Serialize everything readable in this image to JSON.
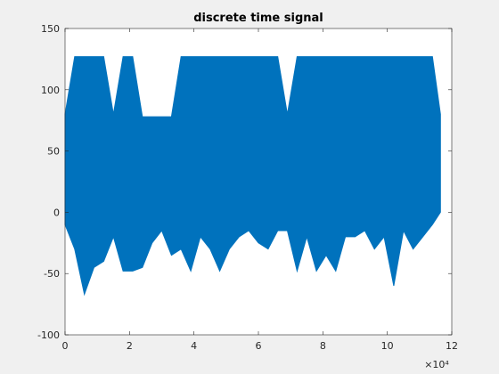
{
  "figure": {
    "background": "#f0f0f0",
    "axes_background": "#ffffff",
    "signal_color": "#0072bd",
    "exponent_label": "×10⁴"
  },
  "chart_data": {
    "type": "line",
    "title": "discrete time signal",
    "xlabel": "",
    "ylabel": "",
    "xlim": [
      0,
      120000
    ],
    "ylim": [
      -100,
      150
    ],
    "x_ticks": [
      0,
      20000,
      40000,
      60000,
      80000,
      100000,
      120000
    ],
    "x_tick_labels": [
      "0",
      "2",
      "4",
      "6",
      "8",
      "10",
      "12"
    ],
    "y_ticks": [
      -100,
      -50,
      0,
      50,
      100,
      150
    ],
    "y_tick_labels": [
      "-100",
      "-50",
      "0",
      "50",
      "100",
      "150"
    ],
    "grid": false,
    "legend": "none",
    "series": [
      {
        "x": [
          0,
          3000,
          6000,
          9000,
          12000,
          15000,
          18000,
          21000,
          24000,
          27000,
          30000,
          33000,
          36000,
          39000,
          42000,
          45000,
          48000,
          51000,
          54000,
          57000,
          60000,
          63000,
          66000,
          69000,
          72000,
          75000,
          78000,
          81000,
          84000,
          87000,
          90000,
          93000,
          96000,
          99000,
          102000,
          105000,
          108000,
          111000,
          114000,
          116500
        ],
        "max": [
          80,
          127,
          127,
          127,
          127,
          80,
          127,
          127,
          78,
          78,
          78,
          78,
          127,
          127,
          127,
          127,
          127,
          127,
          127,
          127,
          127,
          127,
          127,
          80,
          127,
          127,
          127,
          127,
          127,
          127,
          127,
          127,
          127,
          127,
          127,
          127,
          127,
          127,
          127,
          80
        ],
        "min": [
          -10,
          -30,
          -67,
          -45,
          -40,
          -20,
          -48,
          -48,
          -45,
          -25,
          -15,
          -35,
          -30,
          -48,
          -20,
          -30,
          -48,
          -30,
          -20,
          -15,
          -25,
          -30,
          -15,
          -15,
          -48,
          -20,
          -48,
          -35,
          -48,
          -20,
          -20,
          -15,
          -30,
          -20,
          -60,
          -15,
          -30,
          -20,
          -10,
          0
        ]
      }
    ],
    "x_scale_exponent": 4
  }
}
